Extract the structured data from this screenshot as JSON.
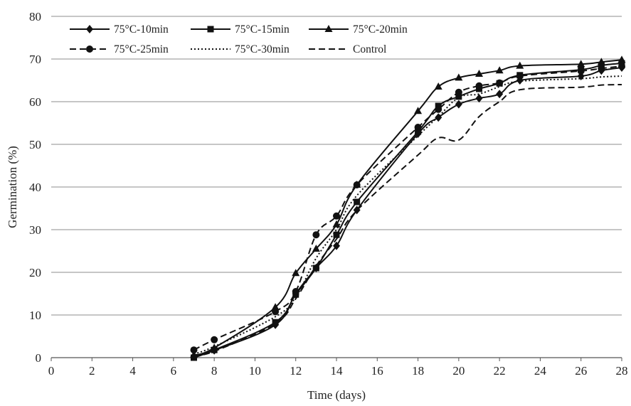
{
  "chart_data": {
    "type": "line",
    "title": "",
    "xlabel": "Time (days)",
    "ylabel": "Germination (%)",
    "xlim": [
      0,
      28
    ],
    "ylim": [
      0,
      80
    ],
    "x_ticks": [
      0,
      2,
      4,
      6,
      8,
      10,
      12,
      14,
      16,
      18,
      20,
      22,
      24,
      26,
      28
    ],
    "y_ticks": [
      0,
      10,
      20,
      30,
      40,
      50,
      60,
      70,
      80
    ],
    "grid": "horizontal",
    "legend_position": "top-left, inside plot",
    "series": [
      {
        "name": "75°C-10min",
        "line_style": "solid",
        "marker": "diamond",
        "color": "#111111",
        "points": [
          [
            7,
            0.3
          ],
          [
            8,
            1.7
          ],
          [
            11,
            7.7
          ],
          [
            12,
            15.0
          ],
          [
            13,
            21.0
          ],
          [
            14,
            26.2
          ],
          [
            15,
            34.6
          ],
          [
            18,
            52.5
          ],
          [
            19,
            56.3
          ],
          [
            20,
            59.4
          ],
          [
            21,
            60.8
          ],
          [
            22,
            61.8
          ],
          [
            23,
            65.0
          ],
          [
            26,
            66.0
          ],
          [
            27,
            67.3
          ],
          [
            28,
            68.0
          ]
        ]
      },
      {
        "name": "75°C-15min",
        "line_style": "solid",
        "marker": "square",
        "color": "#111111",
        "points": [
          [
            7,
            0.0
          ],
          [
            8,
            1.8
          ],
          [
            11,
            8.3
          ],
          [
            12,
            14.8
          ],
          [
            13,
            21.0
          ],
          [
            14,
            28.8
          ],
          [
            15,
            36.5
          ],
          [
            18,
            53.0
          ],
          [
            19,
            59.0
          ],
          [
            20,
            61.2
          ],
          [
            21,
            63.0
          ],
          [
            22,
            64.3
          ],
          [
            23,
            66.2
          ],
          [
            26,
            67.5
          ],
          [
            27,
            68.5
          ],
          [
            28,
            69.0
          ]
        ]
      },
      {
        "name": "75°C-20min",
        "line_style": "solid",
        "marker": "triangle",
        "color": "#111111",
        "points": [
          [
            7,
            0.6
          ],
          [
            8,
            2.3
          ],
          [
            11,
            11.8
          ],
          [
            12,
            19.8
          ],
          [
            13,
            25.5
          ],
          [
            14,
            31.2
          ],
          [
            15,
            40.5
          ],
          [
            18,
            57.8
          ],
          [
            19,
            63.5
          ],
          [
            20,
            65.6
          ],
          [
            21,
            66.5
          ],
          [
            22,
            67.3
          ],
          [
            23,
            68.4
          ],
          [
            26,
            68.8
          ],
          [
            27,
            69.3
          ],
          [
            28,
            69.8
          ]
        ]
      },
      {
        "name": "75°C-25min",
        "line_style": "dashed",
        "marker": "circle",
        "color": "#111111",
        "points": [
          [
            7,
            1.8
          ],
          [
            8,
            4.2
          ],
          [
            11,
            10.8
          ],
          [
            12,
            15.5
          ],
          [
            13,
            28.8
          ],
          [
            14,
            33.2
          ],
          [
            15,
            40.5
          ],
          [
            18,
            54.0
          ],
          [
            19,
            58.2
          ],
          [
            20,
            62.2
          ],
          [
            21,
            63.7
          ],
          [
            22,
            64.4
          ],
          [
            23,
            66.0
          ],
          [
            26,
            67.2
          ],
          [
            27,
            67.8
          ],
          [
            28,
            68.3
          ]
        ]
      },
      {
        "name": "75°C-30min",
        "line_style": "dotted",
        "marker": "none",
        "color": "#111111",
        "points": [
          [
            7,
            0.9
          ],
          [
            8,
            2.6
          ],
          [
            11,
            9.6
          ],
          [
            12,
            14.2
          ],
          [
            13,
            23.3
          ],
          [
            14,
            30.0
          ],
          [
            15,
            38.0
          ],
          [
            18,
            52.0
          ],
          [
            19,
            56.5
          ],
          [
            20,
            61.0
          ],
          [
            21,
            61.8
          ],
          [
            22,
            63.5
          ],
          [
            23,
            64.8
          ],
          [
            26,
            65.4
          ],
          [
            27,
            65.8
          ],
          [
            28,
            66.0
          ]
        ]
      },
      {
        "name": "Control",
        "line_style": "dashed",
        "marker": "none",
        "color": "#111111",
        "points": [
          [
            7,
            0.5
          ],
          [
            8,
            1.5
          ],
          [
            11,
            8.0
          ],
          [
            12,
            13.8
          ],
          [
            13,
            21.5
          ],
          [
            14,
            27.8
          ],
          [
            15,
            34.5
          ],
          [
            18,
            47.5
          ],
          [
            19,
            51.5
          ],
          [
            20,
            51.0
          ],
          [
            21,
            56.5
          ],
          [
            22,
            60.0
          ],
          [
            23,
            62.8
          ],
          [
            26,
            63.4
          ],
          [
            27,
            63.9
          ],
          [
            28,
            64.0
          ]
        ]
      }
    ]
  }
}
